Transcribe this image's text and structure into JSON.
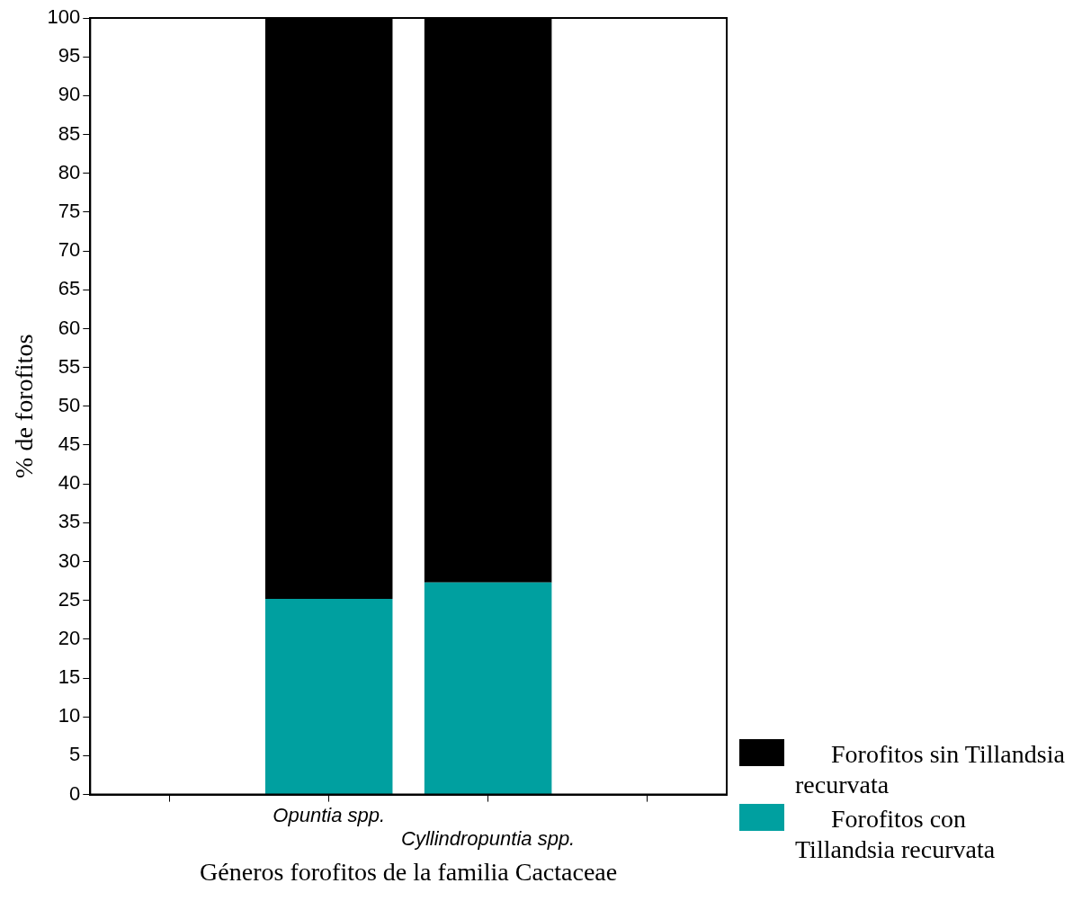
{
  "chart_data": {
    "type": "bar",
    "stacked": true,
    "xlabel": "Géneros forofitos de la familia Cactaceae",
    "ylabel": "% de forofitos",
    "categories": [
      null,
      "Opuntia spp.",
      "Cyllindropuntia spp.",
      null
    ],
    "series": [
      {
        "name": "Forofitos con Tillandsia recurvata",
        "color": "#00a0a0",
        "values": [
          null,
          25.2,
          27.3,
          null
        ]
      },
      {
        "name": "Forofitos sin Tillandsia recurvata",
        "color": "#000000",
        "values": [
          null,
          74.8,
          72.7,
          null
        ]
      }
    ],
    "ylim": [
      0,
      100
    ],
    "yticks": [
      0,
      5,
      10,
      15,
      20,
      25,
      30,
      35,
      40,
      45,
      50,
      55,
      60,
      65,
      70,
      75,
      80,
      85,
      90,
      95,
      100
    ],
    "grid": false,
    "legend": "bottom right"
  }
}
